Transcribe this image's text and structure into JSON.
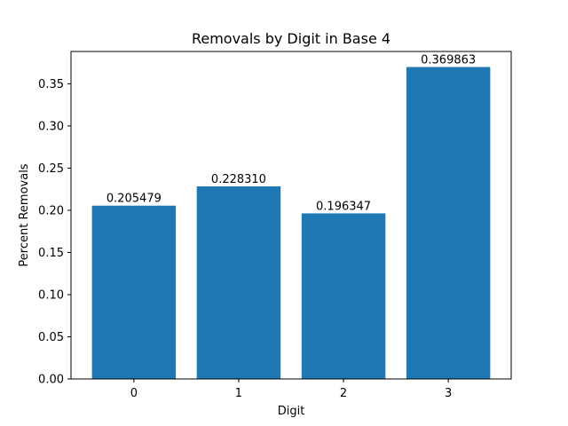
{
  "chart_data": {
    "type": "bar",
    "title": "Removals by Digit in Base 4",
    "xlabel": "Digit",
    "ylabel": "Percent Removals",
    "categories": [
      "0",
      "1",
      "2",
      "3"
    ],
    "values": [
      0.205479,
      0.22831,
      0.196347,
      0.369863
    ],
    "value_labels": [
      "0.205479",
      "0.228310",
      "0.196347",
      "0.369863"
    ],
    "ylim": [
      0,
      0.3883
    ],
    "yticks": [
      0.0,
      0.05,
      0.1,
      0.15,
      0.2,
      0.25,
      0.3,
      0.35
    ],
    "ytick_labels": [
      "0.00",
      "0.05",
      "0.10",
      "0.15",
      "0.20",
      "0.25",
      "0.30",
      "0.35"
    ],
    "grid": false,
    "colors": {
      "bar": "#1f77b4",
      "axis": "#000000",
      "background": "#ffffff"
    }
  }
}
